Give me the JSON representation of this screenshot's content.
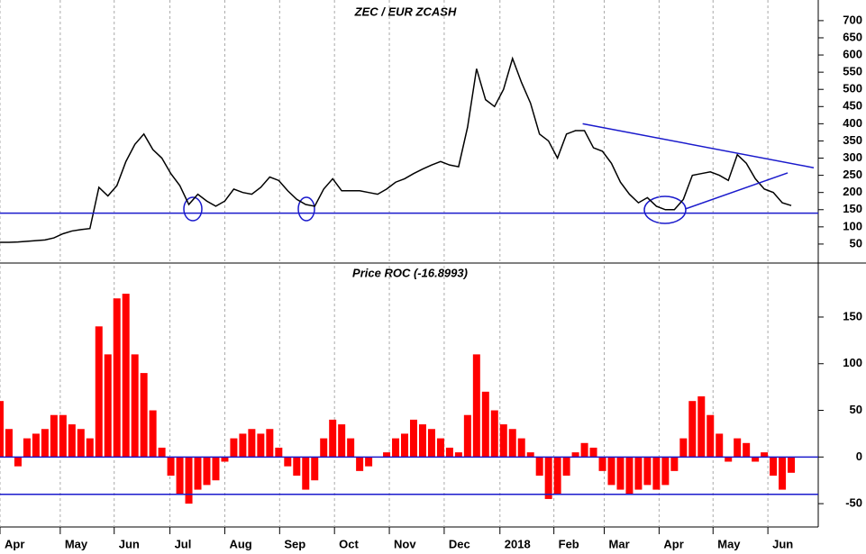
{
  "chart_data": [
    {
      "type": "line",
      "title": "ZEC / EUR ZCASH",
      "color": "#000000",
      "line_color": "#1a1acc",
      "xlim": [
        0,
        91
      ],
      "ylim": [
        0,
        760
      ],
      "yticks": [
        50,
        100,
        150,
        200,
        250,
        300,
        350,
        400,
        450,
        500,
        550,
        600,
        650,
        700
      ],
      "values": [
        55,
        55,
        56,
        58,
        60,
        62,
        68,
        80,
        88,
        92,
        95,
        215,
        190,
        220,
        290,
        340,
        370,
        325,
        300,
        255,
        220,
        165,
        195,
        175,
        160,
        175,
        210,
        200,
        195,
        215,
        245,
        235,
        205,
        180,
        165,
        160,
        210,
        240,
        205,
        205,
        205,
        200,
        195,
        210,
        230,
        240,
        255,
        268,
        280,
        290,
        280,
        275,
        390,
        560,
        470,
        450,
        500,
        590,
        520,
        460,
        370,
        350,
        300,
        370,
        380,
        380,
        330,
        320,
        285,
        230,
        195,
        170,
        185,
        160,
        150,
        150,
        180,
        250,
        255,
        260,
        250,
        235,
        310,
        285,
        240,
        210,
        200,
        170,
        162
      ],
      "hlines": [
        140
      ],
      "trendlines": [
        {
          "x": [
            64.8,
            90.5
          ],
          "y": [
            400,
            272
          ]
        },
        {
          "x": [
            76.2,
            87.6
          ],
          "y": [
            152,
            257
          ]
        }
      ]
    },
    {
      "type": "bar",
      "title": "Price ROC (-16.8993)",
      "color": "#ff0000",
      "line_color": "#1a1acc",
      "xlim": [
        0,
        91
      ],
      "ylim": [
        -75,
        205
      ],
      "yticks": [
        -50,
        0,
        50,
        100,
        150
      ],
      "values": [
        60,
        30,
        -10,
        20,
        25,
        30,
        45,
        45,
        35,
        30,
        20,
        140,
        110,
        170,
        175,
        110,
        90,
        50,
        10,
        -20,
        -40,
        -50,
        -35,
        -30,
        -25,
        -5,
        20,
        25,
        30,
        25,
        30,
        10,
        -10,
        -20,
        -35,
        -25,
        20,
        40,
        35,
        20,
        -15,
        -10,
        0,
        5,
        20,
        25,
        40,
        35,
        30,
        20,
        10,
        5,
        45,
        110,
        70,
        50,
        35,
        30,
        20,
        5,
        -20,
        -45,
        -40,
        -20,
        5,
        15,
        10,
        -15,
        -30,
        -35,
        -40,
        -35,
        -30,
        -35,
        -30,
        -15,
        20,
        60,
        65,
        45,
        25,
        -5,
        20,
        15,
        -5,
        5,
        -20,
        -35,
        -16.8993
      ],
      "hlines": [
        0,
        -40
      ],
      "xticks": [
        {
          "value": 0,
          "label": "Apr"
        },
        {
          "value": 6.7,
          "label": "May"
        },
        {
          "value": 12.7,
          "label": "Jun"
        },
        {
          "value": 18.9,
          "label": "Jul"
        },
        {
          "value": 25,
          "label": "Aug"
        },
        {
          "value": 31.1,
          "label": "Sep"
        },
        {
          "value": 37.2,
          "label": "Oct"
        },
        {
          "value": 43.3,
          "label": "Nov"
        },
        {
          "value": 49.4,
          "label": "Dec"
        },
        {
          "value": 55.6,
          "label": "2018"
        },
        {
          "value": 61.6,
          "label": "Feb"
        },
        {
          "value": 67.2,
          "label": "Mar"
        },
        {
          "value": 73.3,
          "label": "Apr"
        },
        {
          "value": 79.3,
          "label": "May"
        },
        {
          "value": 85.4,
          "label": "Jun"
        }
      ]
    }
  ]
}
